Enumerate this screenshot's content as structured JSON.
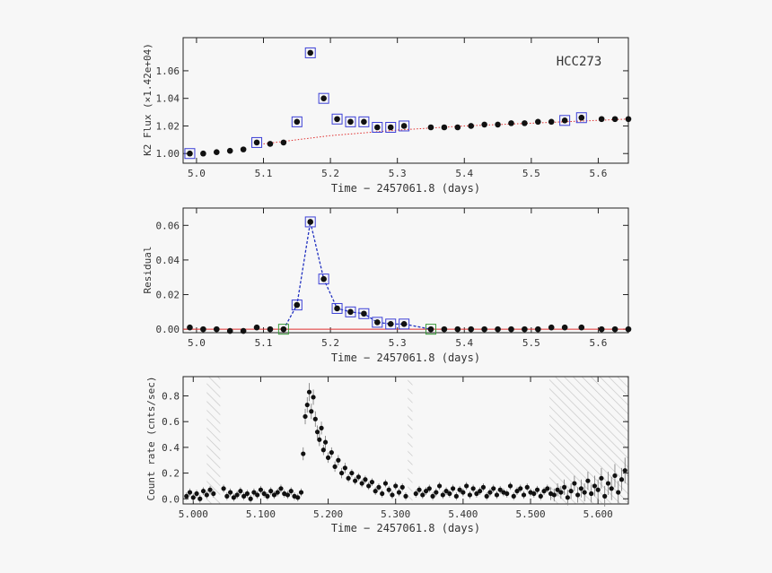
{
  "colors": {
    "background": "#f7f7f7",
    "axis": "#222222",
    "point": "#111111",
    "flare_box": "#3b3fd6",
    "green_box": "#3a9a3a",
    "model_line": "#e03030",
    "residual_line": "#2030c0",
    "hatch": "#c8c8c8"
  },
  "chart_data": [
    {
      "type": "scatter",
      "panel": "k2-flux",
      "label": "HCC273",
      "xlabel": "Time − 2457061.8 (days)",
      "ylabel": "K2 Flux (×1.42e+04)",
      "xlim": [
        4.98,
        5.645
      ],
      "ylim": [
        0.993,
        1.084
      ],
      "xticks": [
        5.0,
        5.1,
        5.2,
        5.3,
        5.4,
        5.5,
        5.6
      ],
      "xtick_labels": [
        "5.0",
        "5.1",
        "5.2",
        "5.3",
        "5.4",
        "5.5",
        "5.6"
      ],
      "yticks": [
        1.0,
        1.02,
        1.04,
        1.06
      ],
      "ytick_labels": [
        "1.00",
        "1.02",
        "1.04",
        "1.06"
      ],
      "x": [
        4.99,
        5.01,
        5.03,
        5.05,
        5.07,
        5.09,
        5.11,
        5.13,
        5.15,
        5.17,
        5.19,
        5.21,
        5.23,
        5.25,
        5.27,
        5.29,
        5.31,
        5.35,
        5.37,
        5.39,
        5.41,
        5.43,
        5.45,
        5.47,
        5.49,
        5.51,
        5.53,
        5.55,
        5.575,
        5.605,
        5.625,
        5.645
      ],
      "y": [
        1.0,
        1.0,
        1.001,
        1.002,
        1.003,
        1.008,
        1.007,
        1.008,
        1.023,
        1.073,
        1.04,
        1.025,
        1.023,
        1.023,
        1.019,
        1.019,
        1.02,
        1.019,
        1.019,
        1.019,
        1.02,
        1.021,
        1.021,
        1.022,
        1.022,
        1.023,
        1.023,
        1.024,
        1.026,
        1.025,
        1.025,
        1.025
      ],
      "flare_flag": [
        true,
        false,
        false,
        false,
        false,
        true,
        false,
        false,
        true,
        true,
        true,
        true,
        true,
        true,
        true,
        true,
        true,
        false,
        false,
        false,
        false,
        false,
        false,
        false,
        false,
        false,
        false,
        true,
        true,
        false,
        false,
        false
      ],
      "model_x": [
        5.1,
        5.2,
        5.3,
        5.4,
        5.5,
        5.645
      ],
      "model_y": [
        1.007,
        1.013,
        1.017,
        1.02,
        1.022,
        1.025
      ]
    },
    {
      "type": "scatter",
      "panel": "residual",
      "xlabel": "Time − 2457061.8 (days)",
      "ylabel": "Residual",
      "xlim": [
        4.98,
        5.645
      ],
      "ylim": [
        -0.002,
        0.07
      ],
      "xticks": [
        5.0,
        5.1,
        5.2,
        5.3,
        5.4,
        5.5,
        5.6
      ],
      "xtick_labels": [
        "5.0",
        "5.1",
        "5.2",
        "5.3",
        "5.4",
        "5.5",
        "5.6"
      ],
      "yticks": [
        0.0,
        0.02,
        0.04,
        0.06
      ],
      "ytick_labels": [
        "0.00",
        "0.02",
        "0.04",
        "0.06"
      ],
      "x": [
        4.99,
        5.01,
        5.03,
        5.05,
        5.07,
        5.09,
        5.11,
        5.13,
        5.15,
        5.17,
        5.19,
        5.21,
        5.23,
        5.25,
        5.27,
        5.29,
        5.31,
        5.35,
        5.37,
        5.39,
        5.41,
        5.43,
        5.45,
        5.47,
        5.49,
        5.51,
        5.53,
        5.55,
        5.575,
        5.605,
        5.625,
        5.645
      ],
      "y": [
        0.001,
        0.0,
        0.0,
        -0.001,
        -0.001,
        0.001,
        0.0,
        0.0,
        0.014,
        0.062,
        0.029,
        0.012,
        0.01,
        0.009,
        0.004,
        0.003,
        0.003,
        0.0,
        0.0,
        0.0,
        0.0,
        0.0,
        0.0,
        0.0,
        0.0,
        0.0,
        0.001,
        0.001,
        0.001,
        0.0,
        0.0,
        0.0
      ],
      "flare_flag": [
        false,
        false,
        false,
        false,
        false,
        false,
        false,
        false,
        true,
        true,
        true,
        true,
        true,
        true,
        true,
        true,
        true,
        false,
        false,
        false,
        false,
        false,
        false,
        false,
        false,
        false,
        false,
        false,
        false,
        false,
        false,
        false
      ],
      "green_flag": [
        false,
        false,
        false,
        false,
        false,
        false,
        false,
        true,
        false,
        false,
        false,
        false,
        false,
        false,
        false,
        false,
        false,
        true,
        false,
        false,
        false,
        false,
        false,
        false,
        false,
        false,
        false,
        false,
        false,
        false,
        false,
        false
      ],
      "fit_x": [
        5.13,
        5.15,
        5.17,
        5.19,
        5.21,
        5.23,
        5.25,
        5.27,
        5.29,
        5.31,
        5.35
      ],
      "fit_y": [
        0.0,
        0.014,
        0.062,
        0.029,
        0.012,
        0.01,
        0.009,
        0.004,
        0.003,
        0.003,
        0.0
      ]
    },
    {
      "type": "scatter",
      "panel": "count-rate",
      "xlabel": "Time − 2457061.8 (days)",
      "ylabel": "Count rate (cnts/sec)",
      "xlim": [
        4.985,
        5.645
      ],
      "ylim": [
        -0.04,
        0.95
      ],
      "xticks": [
        5.0,
        5.1,
        5.2,
        5.3,
        5.4,
        5.5,
        5.6
      ],
      "xtick_labels": [
        "5.000",
        "5.100",
        "5.200",
        "5.300",
        "5.400",
        "5.500",
        "5.600"
      ],
      "yticks": [
        0.0,
        0.2,
        0.4,
        0.6,
        0.8
      ],
      "ytick_labels": [
        "0.0",
        "0.2",
        "0.4",
        "0.6",
        "0.8"
      ],
      "gaps": [
        [
          5.02,
          5.04
        ],
        [
          5.318,
          5.325
        ],
        [
          5.528,
          5.645
        ]
      ],
      "x": [
        4.99,
        4.995,
        5.0,
        5.005,
        5.01,
        5.015,
        5.02,
        5.025,
        5.03,
        5.045,
        5.05,
        5.055,
        5.06,
        5.065,
        5.07,
        5.075,
        5.08,
        5.085,
        5.09,
        5.095,
        5.1,
        5.105,
        5.11,
        5.115,
        5.12,
        5.125,
        5.13,
        5.135,
        5.14,
        5.145,
        5.15,
        5.155,
        5.16,
        5.163,
        5.166,
        5.169,
        5.172,
        5.175,
        5.178,
        5.181,
        5.184,
        5.187,
        5.19,
        5.193,
        5.196,
        5.2,
        5.205,
        5.21,
        5.215,
        5.22,
        5.225,
        5.23,
        5.235,
        5.24,
        5.245,
        5.25,
        5.255,
        5.26,
        5.265,
        5.27,
        5.275,
        5.28,
        5.285,
        5.29,
        5.295,
        5.3,
        5.305,
        5.31,
        5.315,
        5.33,
        5.335,
        5.34,
        5.345,
        5.35,
        5.355,
        5.36,
        5.365,
        5.37,
        5.375,
        5.38,
        5.385,
        5.39,
        5.395,
        5.4,
        5.405,
        5.41,
        5.415,
        5.42,
        5.425,
        5.43,
        5.435,
        5.44,
        5.445,
        5.45,
        5.455,
        5.46,
        5.465,
        5.47,
        5.475,
        5.48,
        5.485,
        5.49,
        5.495,
        5.5,
        5.505,
        5.51,
        5.515,
        5.52,
        5.525,
        5.53,
        5.535,
        5.54,
        5.545,
        5.55,
        5.555,
        5.56,
        5.565,
        5.57,
        5.575,
        5.58,
        5.585,
        5.59,
        5.595,
        5.6,
        5.605,
        5.61,
        5.615,
        5.62,
        5.625,
        5.63,
        5.635,
        5.64
      ],
      "y": [
        0.02,
        0.05,
        0.01,
        0.04,
        0.0,
        0.06,
        0.03,
        0.07,
        0.04,
        0.08,
        0.02,
        0.05,
        0.01,
        0.03,
        0.06,
        0.02,
        0.04,
        0.0,
        0.05,
        0.03,
        0.07,
        0.04,
        0.02,
        0.06,
        0.03,
        0.05,
        0.08,
        0.04,
        0.03,
        0.06,
        0.02,
        0.01,
        0.05,
        0.35,
        0.64,
        0.73,
        0.83,
        0.68,
        0.79,
        0.62,
        0.52,
        0.46,
        0.55,
        0.38,
        0.44,
        0.32,
        0.36,
        0.25,
        0.3,
        0.2,
        0.24,
        0.16,
        0.2,
        0.14,
        0.17,
        0.12,
        0.15,
        0.1,
        0.13,
        0.06,
        0.09,
        0.04,
        0.12,
        0.07,
        0.03,
        0.1,
        0.05,
        0.09,
        0.02,
        0.04,
        0.07,
        0.03,
        0.06,
        0.08,
        0.02,
        0.05,
        0.1,
        0.03,
        0.06,
        0.04,
        0.08,
        0.02,
        0.07,
        0.05,
        0.1,
        0.03,
        0.08,
        0.04,
        0.06,
        0.09,
        0.02,
        0.05,
        0.08,
        0.03,
        0.07,
        0.05,
        0.04,
        0.1,
        0.02,
        0.06,
        0.08,
        0.03,
        0.09,
        0.05,
        0.04,
        0.07,
        0.02,
        0.06,
        0.08,
        0.04,
        0.03,
        0.07,
        0.05,
        0.09,
        0.01,
        0.06,
        0.12,
        0.03,
        0.08,
        0.05,
        0.14,
        0.04,
        0.1,
        0.07,
        0.16,
        0.02,
        0.12,
        0.08,
        0.18,
        0.05,
        0.15,
        0.22
      ],
      "yerr": [
        0.03,
        0.03,
        0.03,
        0.03,
        0.03,
        0.03,
        0.03,
        0.03,
        0.03,
        0.03,
        0.03,
        0.03,
        0.03,
        0.03,
        0.03,
        0.03,
        0.03,
        0.03,
        0.03,
        0.03,
        0.03,
        0.03,
        0.03,
        0.03,
        0.03,
        0.03,
        0.03,
        0.03,
        0.03,
        0.03,
        0.03,
        0.03,
        0.03,
        0.05,
        0.06,
        0.06,
        0.07,
        0.06,
        0.06,
        0.06,
        0.05,
        0.05,
        0.05,
        0.04,
        0.05,
        0.04,
        0.04,
        0.04,
        0.04,
        0.04,
        0.04,
        0.03,
        0.03,
        0.03,
        0.03,
        0.03,
        0.03,
        0.03,
        0.03,
        0.03,
        0.03,
        0.03,
        0.03,
        0.03,
        0.03,
        0.03,
        0.03,
        0.03,
        0.03,
        0.03,
        0.03,
        0.03,
        0.03,
        0.03,
        0.03,
        0.03,
        0.03,
        0.03,
        0.03,
        0.03,
        0.03,
        0.03,
        0.03,
        0.03,
        0.03,
        0.03,
        0.03,
        0.03,
        0.03,
        0.03,
        0.03,
        0.03,
        0.03,
        0.03,
        0.03,
        0.03,
        0.03,
        0.03,
        0.03,
        0.03,
        0.03,
        0.03,
        0.03,
        0.03,
        0.03,
        0.03,
        0.03,
        0.03,
        0.03,
        0.05,
        0.05,
        0.05,
        0.05,
        0.06,
        0.06,
        0.06,
        0.06,
        0.06,
        0.07,
        0.07,
        0.07,
        0.07,
        0.08,
        0.08,
        0.08,
        0.08,
        0.09,
        0.09,
        0.09,
        0.09,
        0.09,
        0.1
      ]
    }
  ]
}
